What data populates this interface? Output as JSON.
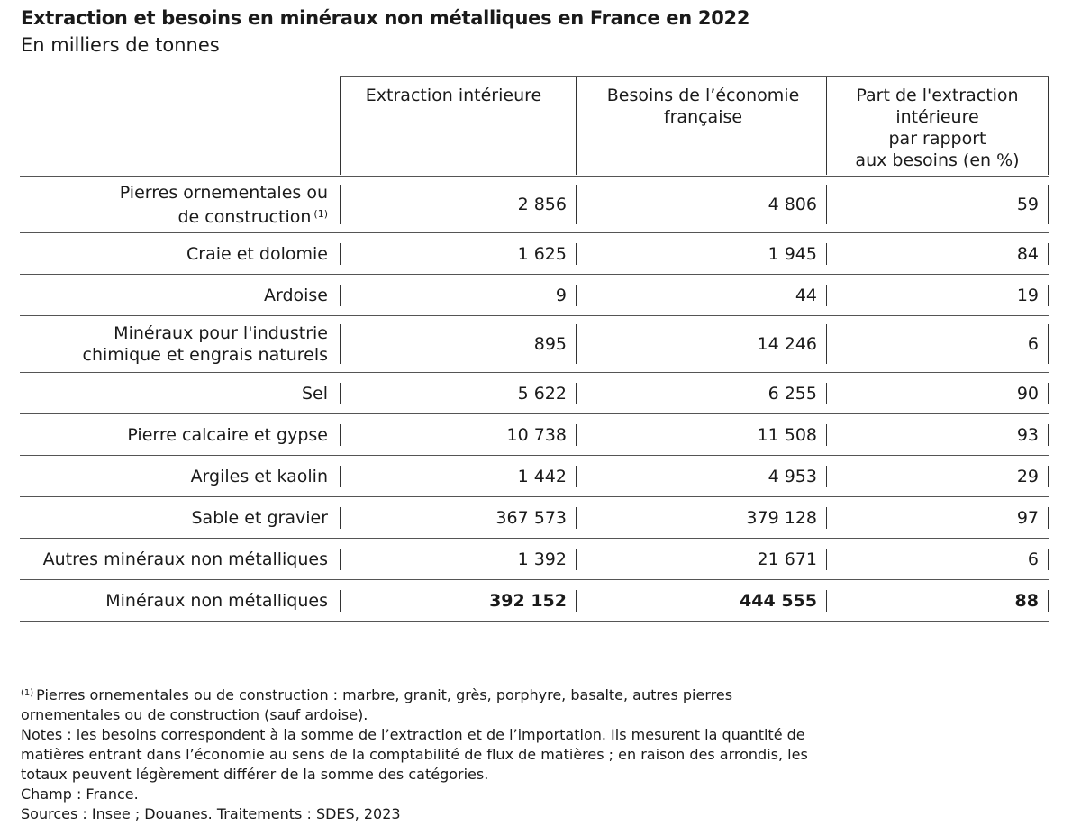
{
  "title": "Extraction et besoins en minéraux non métalliques en France en 2022",
  "subtitle": "En milliers de tonnes",
  "chart_data": {
    "type": "table",
    "title": "Extraction et besoins en minéraux non métalliques en France en 2022",
    "unit": "En milliers de tonnes",
    "columns": [
      "Extraction intérieure",
      "Besoins de l’économie française",
      "Part de l'extraction intérieure par rapport aux besoins (en %)"
    ],
    "rows": [
      {
        "label": "Pierres ornementales ou de construction",
        "ref": "(1)",
        "values": [
          "2 856",
          "4 806",
          "59"
        ]
      },
      {
        "label": "Craie et dolomie",
        "values": [
          "1 625",
          "1 945",
          "84"
        ]
      },
      {
        "label": "Ardoise",
        "values": [
          "9",
          "44",
          "19"
        ]
      },
      {
        "label": "Minéraux pour l'industrie chimique et engrais naturels",
        "values": [
          "895",
          "14 246",
          "6"
        ]
      },
      {
        "label": "Sel",
        "values": [
          "5 622",
          "6 255",
          "90"
        ]
      },
      {
        "label": "Pierre calcaire et gypse",
        "values": [
          "10 738",
          "11 508",
          "93"
        ]
      },
      {
        "label": "Argiles et kaolin",
        "values": [
          "1 442",
          "4 953",
          "29"
        ]
      },
      {
        "label": "Sable et gravier",
        "values": [
          "367 573",
          "379 128",
          "97"
        ]
      },
      {
        "label": "Autres minéraux non métalliques",
        "values": [
          "1 392",
          "21 671",
          "6"
        ]
      },
      {
        "label": "Minéraux non métalliques",
        "values": [
          "392 152",
          "444 555",
          "88"
        ],
        "total": true
      }
    ]
  },
  "headers": {
    "col1": "Extraction intérieure",
    "col2_line1": "Besoins de l’économie",
    "col2_line2": "française",
    "col3_line1": "Part de l'extraction",
    "col3_line2": "intérieure",
    "col3_line3": "par rapport",
    "col3_line4": "aux besoins (en %)"
  },
  "row_labels": {
    "r1_line1": "Pierres ornementales ou",
    "r1_line2": "de construction",
    "r1_ref": "(1)",
    "r4_line1": "Minéraux pour l'industrie",
    "r4_line2": "chimique et engrais naturels"
  },
  "notes": {
    "footnote_ref": "(1)",
    "footnote": "Pierres ornementales ou de construction : marbre, granit, grès, porphyre, basalte, autres pierres ornementales ou de construction (sauf ardoise).",
    "notes": "Notes : les besoins correspondent à la somme de l’extraction et de l’importation. Ils mesurent la quantité de matières entrant dans l’économie au sens de la comptabilité de flux de matières ; en raison des arrondis, les totaux peuvent légèrement différer de la somme des catégories.",
    "champ": "Champ : France.",
    "sources": "Sources : Insee ; Douanes. Traitements : SDES, 2023"
  }
}
